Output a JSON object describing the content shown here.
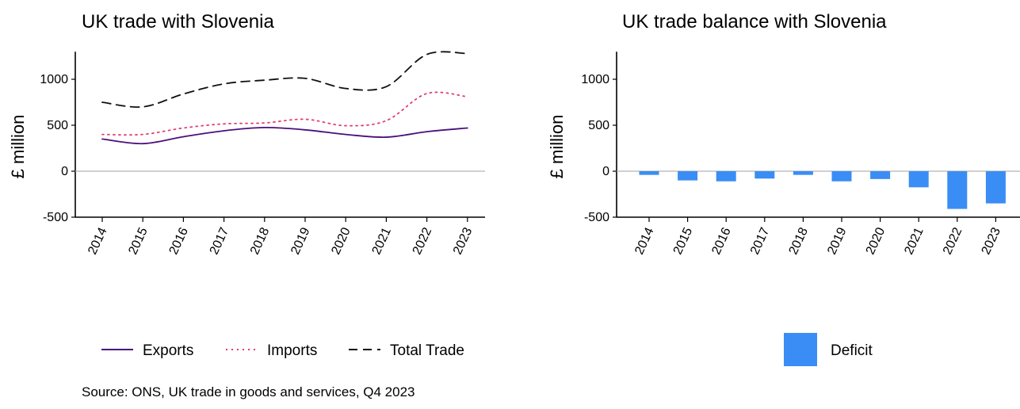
{
  "chart_data": [
    {
      "type": "line",
      "title": "UK trade with Slovenia",
      "xlabel": "",
      "ylabel": "£ million",
      "x": [
        "2014",
        "2015",
        "2016",
        "2017",
        "2018",
        "2019",
        "2020",
        "2021",
        "2022",
        "2023"
      ],
      "ylim": [
        -500,
        1300
      ],
      "yticks": [
        -500,
        0,
        500,
        1000
      ],
      "grid": false,
      "legend_position": "bottom",
      "series": [
        {
          "name": "Exports",
          "color": "#4b0f7a",
          "dash": "solid",
          "values": [
            350,
            300,
            375,
            440,
            475,
            450,
            400,
            370,
            430,
            470
          ]
        },
        {
          "name": "Imports",
          "color": "#e23d6a",
          "dash": "dotted",
          "values": [
            400,
            400,
            470,
            515,
            525,
            565,
            495,
            550,
            845,
            810
          ]
        },
        {
          "name": "Total Trade",
          "color": "#111111",
          "dash": "dashed",
          "values": [
            750,
            700,
            840,
            950,
            990,
            1010,
            900,
            920,
            1270,
            1280
          ]
        }
      ]
    },
    {
      "type": "bar",
      "title": "UK trade balance with Slovenia",
      "xlabel": "",
      "ylabel": "£ million",
      "categories": [
        "2014",
        "2015",
        "2016",
        "2017",
        "2018",
        "2019",
        "2020",
        "2021",
        "2022",
        "2023"
      ],
      "ylim": [
        -500,
        1300
      ],
      "yticks": [
        -500,
        0,
        500,
        1000
      ],
      "grid": false,
      "legend_position": "bottom",
      "series": [
        {
          "name": "Deficit",
          "color": "#3a8df5",
          "values": [
            -40,
            -100,
            -110,
            -80,
            -40,
            -110,
            -85,
            -175,
            -410,
            -350
          ]
        }
      ]
    }
  ],
  "source": "Source: ONS, UK trade in goods and services, Q4 2023"
}
